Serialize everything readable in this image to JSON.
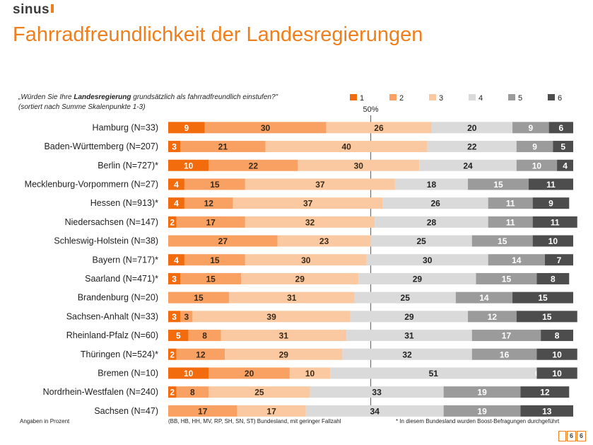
{
  "brand": "sinus",
  "title": "Fahrradfreundlichkeit der Landesregierungen",
  "question_prefix": "„Würden Sie Ihre ",
  "question_bold": "Landesregierung",
  "question_suffix": " grundsätzlich als fahrradfreundlich einstufen?\"",
  "sort_note": "(sortiert nach Summe Skalenpunkte 1-3)",
  "footer": {
    "units": "Angaben in Prozent",
    "small_sample": "(BB, HB, HH, MV, RP, SH, SN, ST) Bundesland, mit geringer Fallzahl",
    "boost": "* In diesem Bundesland wurden Boost-Befragungen durchgeführt",
    "page": "6"
  },
  "colors": [
    "#f26b0d",
    "#f8a163",
    "#fbc9a1",
    "#dadada",
    "#9b9b9b",
    "#4d4d4d"
  ],
  "label_colors": [
    "#ffffff",
    "#3a2a1a",
    "#3a2a1a",
    "#222222",
    "#ffffff",
    "#ffffff"
  ],
  "chart_data": {
    "type": "bar",
    "orientation": "horizontal",
    "stacked": true,
    "title": "Fahrradfreundlichkeit der Landesregierungen",
    "reference_line": {
      "value": 50,
      "label": "50%"
    },
    "xlim": [
      0,
      100
    ],
    "legend": [
      "1",
      "2",
      "3",
      "4",
      "5",
      "6"
    ],
    "legend_position": "top-right",
    "categories": [
      "Hamburg (N=33)",
      "Baden-Württemberg (N=207)",
      "Berlin (N=727)*",
      "Mecklenburg-Vorpommern (N=27)",
      "Hessen (N=913)*",
      "Niedersachsen (N=147)",
      "Schleswig-Holstein (N=38)",
      "Bayern (N=717)*",
      "Saarland (N=471)*",
      "Brandenburg (N=20)",
      "Sachsen-Anhalt (N=33)",
      "Rheinland-Pfalz (N=60)",
      "Thüringen (N=524)*",
      "Bremen (N=10)",
      "Nordrhein-Westfalen (N=240)",
      "Sachsen (N=47)"
    ],
    "series": [
      {
        "name": "1",
        "values": [
          9,
          3,
          10,
          4,
          4,
          2,
          0,
          4,
          3,
          0,
          3,
          5,
          2,
          10,
          2,
          0
        ]
      },
      {
        "name": "2",
        "values": [
          30,
          21,
          22,
          15,
          12,
          17,
          27,
          15,
          15,
          15,
          3,
          8,
          12,
          20,
          8,
          17
        ]
      },
      {
        "name": "3",
        "values": [
          26,
          40,
          30,
          37,
          37,
          32,
          23,
          30,
          29,
          31,
          39,
          31,
          29,
          10,
          25,
          17
        ]
      },
      {
        "name": "4",
        "values": [
          20,
          22,
          24,
          18,
          26,
          28,
          25,
          30,
          29,
          25,
          29,
          31,
          32,
          51,
          33,
          34
        ]
      },
      {
        "name": "5",
        "values": [
          9,
          9,
          10,
          15,
          11,
          11,
          15,
          14,
          15,
          14,
          12,
          17,
          16,
          0,
          19,
          19
        ]
      },
      {
        "name": "6",
        "values": [
          6,
          5,
          4,
          11,
          9,
          11,
          10,
          7,
          8,
          15,
          15,
          8,
          10,
          10,
          12,
          13
        ]
      }
    ]
  }
}
